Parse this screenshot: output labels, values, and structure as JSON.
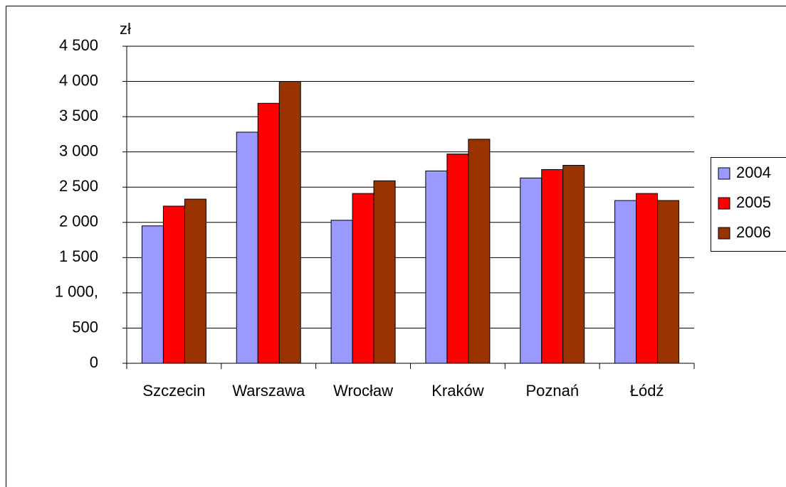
{
  "chart_data": {
    "type": "bar",
    "y_label": "zł",
    "categories": [
      "Szczecin",
      "Warszawa",
      "Wrocław",
      "Kraków",
      "Poznań",
      "Łódź"
    ],
    "series": [
      {
        "name": "2004",
        "color": "#9999ff",
        "values": [
          1950,
          3280,
          2030,
          2730,
          2630,
          2310
        ]
      },
      {
        "name": "2005",
        "color": "#ff0000",
        "values": [
          2230,
          3690,
          2410,
          2970,
          2750,
          2410
        ]
      },
      {
        "name": "2006",
        "color": "#993300",
        "values": [
          2330,
          4000,
          2590,
          3180,
          2810,
          2310
        ]
      }
    ],
    "ylim": [
      0,
      4500
    ],
    "yticks": [
      0,
      500,
      {
        "value": 1000,
        "label": "1 000,"
      },
      {
        "value": 1500,
        "label": "1 500"
      },
      {
        "value": 2000,
        "label": "2 000"
      },
      {
        "value": 2500,
        "label": "2 500"
      },
      {
        "value": 3000,
        "label": "3 000"
      },
      {
        "value": 3500,
        "label": "3 500"
      },
      {
        "value": 4000,
        "label": "4 000"
      },
      {
        "value": 4500,
        "label": "4 500"
      }
    ],
    "grid": true,
    "legend": "right"
  }
}
